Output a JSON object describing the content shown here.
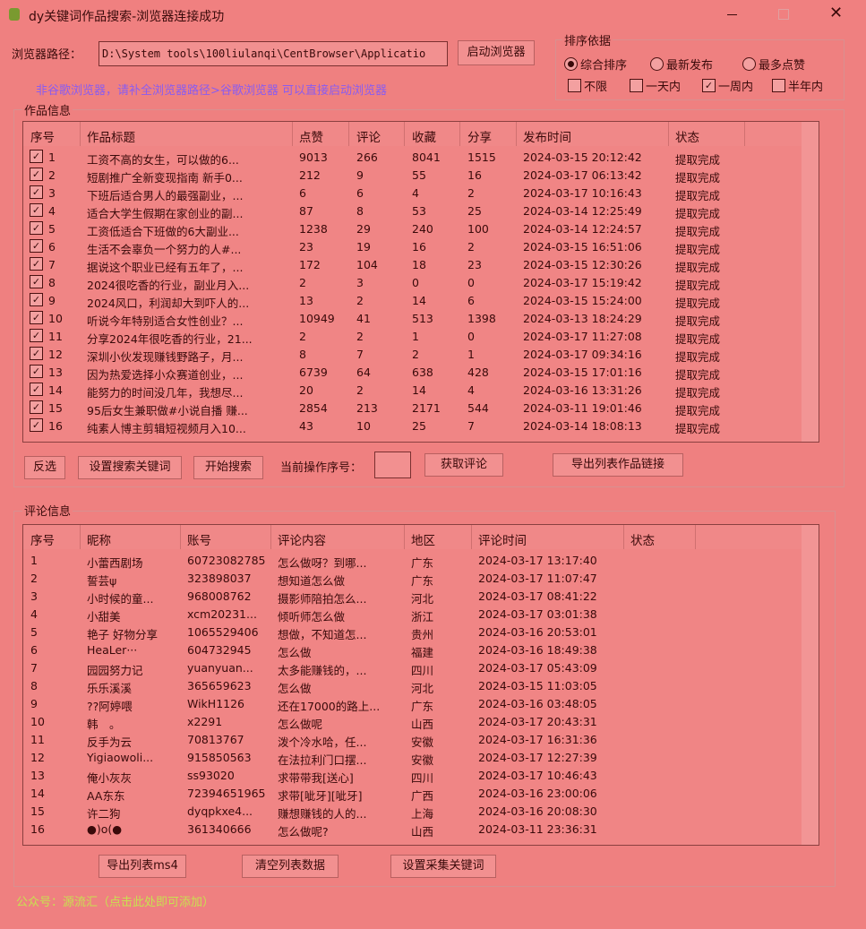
{
  "window": {
    "title": "dy关键词作品搜索-浏览器连接成功"
  },
  "browser": {
    "label": "浏览器路径：",
    "path": "D:\\System tools\\100liulanqi\\CentBrowser\\Applicatio",
    "launch": "启动浏览器",
    "hint": "非谷歌浏览器，请补全浏览器路径>谷歌浏览器 可以直接启动浏览器"
  },
  "sort": {
    "title": "排序依据",
    "options": [
      "综合排序",
      "最新发布",
      "最多点赞"
    ],
    "selected": 0,
    "filters": [
      "不限",
      "一天内",
      "一周内",
      "半年内"
    ],
    "checked": 2
  },
  "works": {
    "title": "作品信息",
    "columns": [
      "序号",
      "作品标题",
      "点赞",
      "评论",
      "收藏",
      "分享",
      "发布时间",
      "状态"
    ],
    "rows": [
      [
        "1",
        "工资不高的女生，可以做的6...",
        "9013",
        "266",
        "8041",
        "1515",
        "2024-03-15 20:12:42",
        "提取完成"
      ],
      [
        "2",
        "短剧推广全新变现指南 新手0...",
        "212",
        "9",
        "55",
        "16",
        "2024-03-17 06:13:42",
        "提取完成"
      ],
      [
        "3",
        "下班后适合男人的最强副业，...",
        "6",
        "6",
        "4",
        "2",
        "2024-03-17 10:16:43",
        "提取完成"
      ],
      [
        "4",
        "适合大学生假期在家创业的副...",
        "87",
        "8",
        "53",
        "25",
        "2024-03-14 12:25:49",
        "提取完成"
      ],
      [
        "5",
        "工资低适合下班做的6大副业...",
        "1238",
        "29",
        "240",
        "100",
        "2024-03-14 12:24:57",
        "提取完成"
      ],
      [
        "6",
        "生活不会辜负一个努力的人#...",
        "23",
        "19",
        "16",
        "2",
        "2024-03-15 16:51:06",
        "提取完成"
      ],
      [
        "7",
        "据说这个职业已经有五年了，...",
        "172",
        "104",
        "18",
        "23",
        "2024-03-15 12:30:26",
        "提取完成"
      ],
      [
        "8",
        "2024很吃香的行业，副业月入...",
        "2",
        "3",
        "0",
        "0",
        "2024-03-17 15:19:42",
        "提取完成"
      ],
      [
        "9",
        "2024风口，利润却大到吓人的...",
        "13",
        "2",
        "14",
        "6",
        "2024-03-15 15:24:00",
        "提取完成"
      ],
      [
        "10",
        "听说今年特别适合女性创业？...",
        "10949",
        "41",
        "513",
        "1398",
        "2024-03-13 18:24:29",
        "提取完成"
      ],
      [
        "11",
        "分享2024年很吃香的行业，21...",
        "2",
        "2",
        "1",
        "0",
        "2024-03-17 11:27:08",
        "提取完成"
      ],
      [
        "12",
        "深圳小伙发现赚钱野路子，月...",
        "8",
        "7",
        "2",
        "1",
        "2024-03-17 09:34:16",
        "提取完成"
      ],
      [
        "13",
        "因为热爱选择小众赛道创业，...",
        "6739",
        "64",
        "638",
        "428",
        "2024-03-15 17:01:16",
        "提取完成"
      ],
      [
        "14",
        "能努力的时间没几年，我想尽...",
        "20",
        "2",
        "14",
        "4",
        "2024-03-16 13:31:26",
        "提取完成"
      ],
      [
        "15",
        "95后女生兼职做#小说自播 赚...",
        "2854",
        "213",
        "2171",
        "544",
        "2024-03-11 19:01:46",
        "提取完成"
      ],
      [
        "16",
        "纯素人博主剪辑短视频月入10...",
        "43",
        "10",
        "25",
        "7",
        "2024-03-14 18:08:13",
        "提取完成"
      ]
    ]
  },
  "work_buttons": {
    "invert": "反选",
    "set_keywords": "设置搜索关键词",
    "start": "开始搜索",
    "current_label": "当前操作序号：",
    "get_comments": "获取评论",
    "export_links": "导出列表作品链接"
  },
  "comments": {
    "title": "评论信息",
    "columns": [
      "序号",
      "昵称",
      "账号",
      "评论内容",
      "地区",
      "评论时间",
      "状态"
    ],
    "rows": [
      [
        "1",
        "小蕾西剧场",
        "60723082785",
        "怎么做呀？到哪...",
        "广东",
        "2024-03-17 13:17:40"
      ],
      [
        "2",
        "誓芸ψ",
        "323898037",
        "想知道怎么做",
        "广东",
        "2024-03-17 11:07:47"
      ],
      [
        "3",
        "小时候的童...",
        "968008762",
        "摄影师陪拍怎么...",
        "河北",
        "2024-03-17 08:41:22"
      ],
      [
        "4",
        "小甜美",
        "xcm20231...",
        "倾听师怎么做",
        "浙江",
        "2024-03-17 03:01:38"
      ],
      [
        "5",
        "艳子 好物分享",
        "1065529406",
        "想做，不知道怎...",
        "贵州",
        "2024-03-16 20:53:01"
      ],
      [
        "6",
        "HeaLer···",
        "604732945",
        "怎么做",
        "福建",
        "2024-03-16 18:49:38"
      ],
      [
        "7",
        "园园努力记",
        "yuanyuan...",
        "太多能赚钱的，...",
        "四川",
        "2024-03-17 05:43:09"
      ],
      [
        "8",
        "乐乐溪溪",
        "365659623",
        "怎么做",
        "河北",
        "2024-03-15 11:03:05"
      ],
      [
        "9",
        "??阿婷喂",
        "WikH1126",
        "还在17000的路上...",
        "广东",
        "2024-03-16 03:48:05"
      ],
      [
        "10",
        "韩　。",
        "x2291",
        "怎么做呢",
        "山西",
        "2024-03-17 20:43:31"
      ],
      [
        "11",
        "反手为云",
        "70813767",
        "泼个冷水哈，任...",
        "安徽",
        "2024-03-17 16:31:36"
      ],
      [
        "12",
        "Yigiaowoli...",
        "915850563",
        "在法拉利门口摆...",
        "安徽",
        "2024-03-17 12:27:39"
      ],
      [
        "13",
        "俺小灰灰",
        "ss93020",
        "求带带我[送心]",
        "四川",
        "2024-03-17 10:46:43"
      ],
      [
        "14",
        "AA东东",
        "72394651965",
        "求带[呲牙][呲牙]",
        "广西",
        "2024-03-16 23:00:06"
      ],
      [
        "15",
        "许二狗",
        "dyqpkxe4...",
        "赚想赚钱的人的...",
        "上海",
        "2024-03-16 20:08:30"
      ],
      [
        "16",
        "●)o(●",
        "361340666",
        "怎么做呢?",
        "山西",
        "2024-03-11 23:36:31"
      ]
    ]
  },
  "comment_buttons": {
    "export": "导出列表ms4",
    "clear": "清空列表数据",
    "set_keywords": "设置采集关键词"
  },
  "footer": {
    "text": "公众号：源流汇（点击此处即可添加）"
  }
}
